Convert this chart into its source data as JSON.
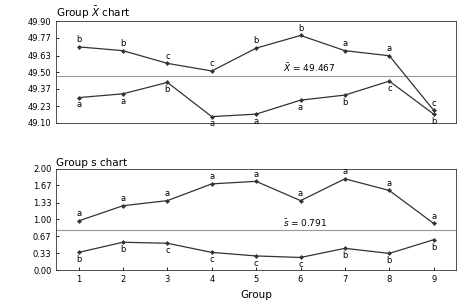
{
  "groups": [
    1,
    2,
    3,
    4,
    5,
    6,
    7,
    8,
    9
  ],
  "xbar_upper": [
    49.7,
    49.67,
    49.57,
    49.51,
    49.69,
    49.79,
    49.67,
    49.63,
    49.2
  ],
  "xbar_lower": [
    49.3,
    49.33,
    49.42,
    49.15,
    49.17,
    49.28,
    49.32,
    49.43,
    49.17
  ],
  "xbar_mean": 49.467,
  "xbar_upper_labels": [
    "b",
    "b",
    "c",
    "c",
    "b",
    "b",
    "a",
    "a",
    "c"
  ],
  "xbar_lower_labels": [
    "a",
    "a",
    "b",
    "a",
    "a",
    "a",
    "b",
    "c",
    "b"
  ],
  "xbar_ylim": [
    49.1,
    49.9
  ],
  "xbar_yticks": [
    49.1,
    49.23,
    49.37,
    49.5,
    49.63,
    49.77,
    49.9
  ],
  "s_upper": [
    0.97,
    1.27,
    1.37,
    1.7,
    1.75,
    1.37,
    1.8,
    1.57,
    0.92
  ],
  "s_lower": [
    0.35,
    0.55,
    0.53,
    0.35,
    0.28,
    0.25,
    0.43,
    0.33,
    0.6
  ],
  "s_mean": 0.791,
  "s_upper_labels": [
    "a",
    "a",
    "a",
    "a",
    "a",
    "a",
    "a",
    "a",
    "a"
  ],
  "s_lower_labels": [
    "b",
    "b",
    "c",
    "c",
    "c",
    "c",
    "b",
    "b",
    "b"
  ],
  "s_ylim": [
    0.0,
    2.0
  ],
  "s_yticks": [
    0.0,
    0.33,
    0.67,
    1.0,
    1.33,
    1.67,
    2.0
  ],
  "xlabel": "Group",
  "title_xbar": "Group $\\bar{X}$ chart",
  "title_s": "Group s chart",
  "xbar_mean_label": "$\\bar{X}$ = 49.467",
  "s_mean_label": "$\\bar{s}$ = 0.791",
  "line_color": "#333333",
  "mean_line_color": "#999999",
  "bg_color": "#ffffff"
}
